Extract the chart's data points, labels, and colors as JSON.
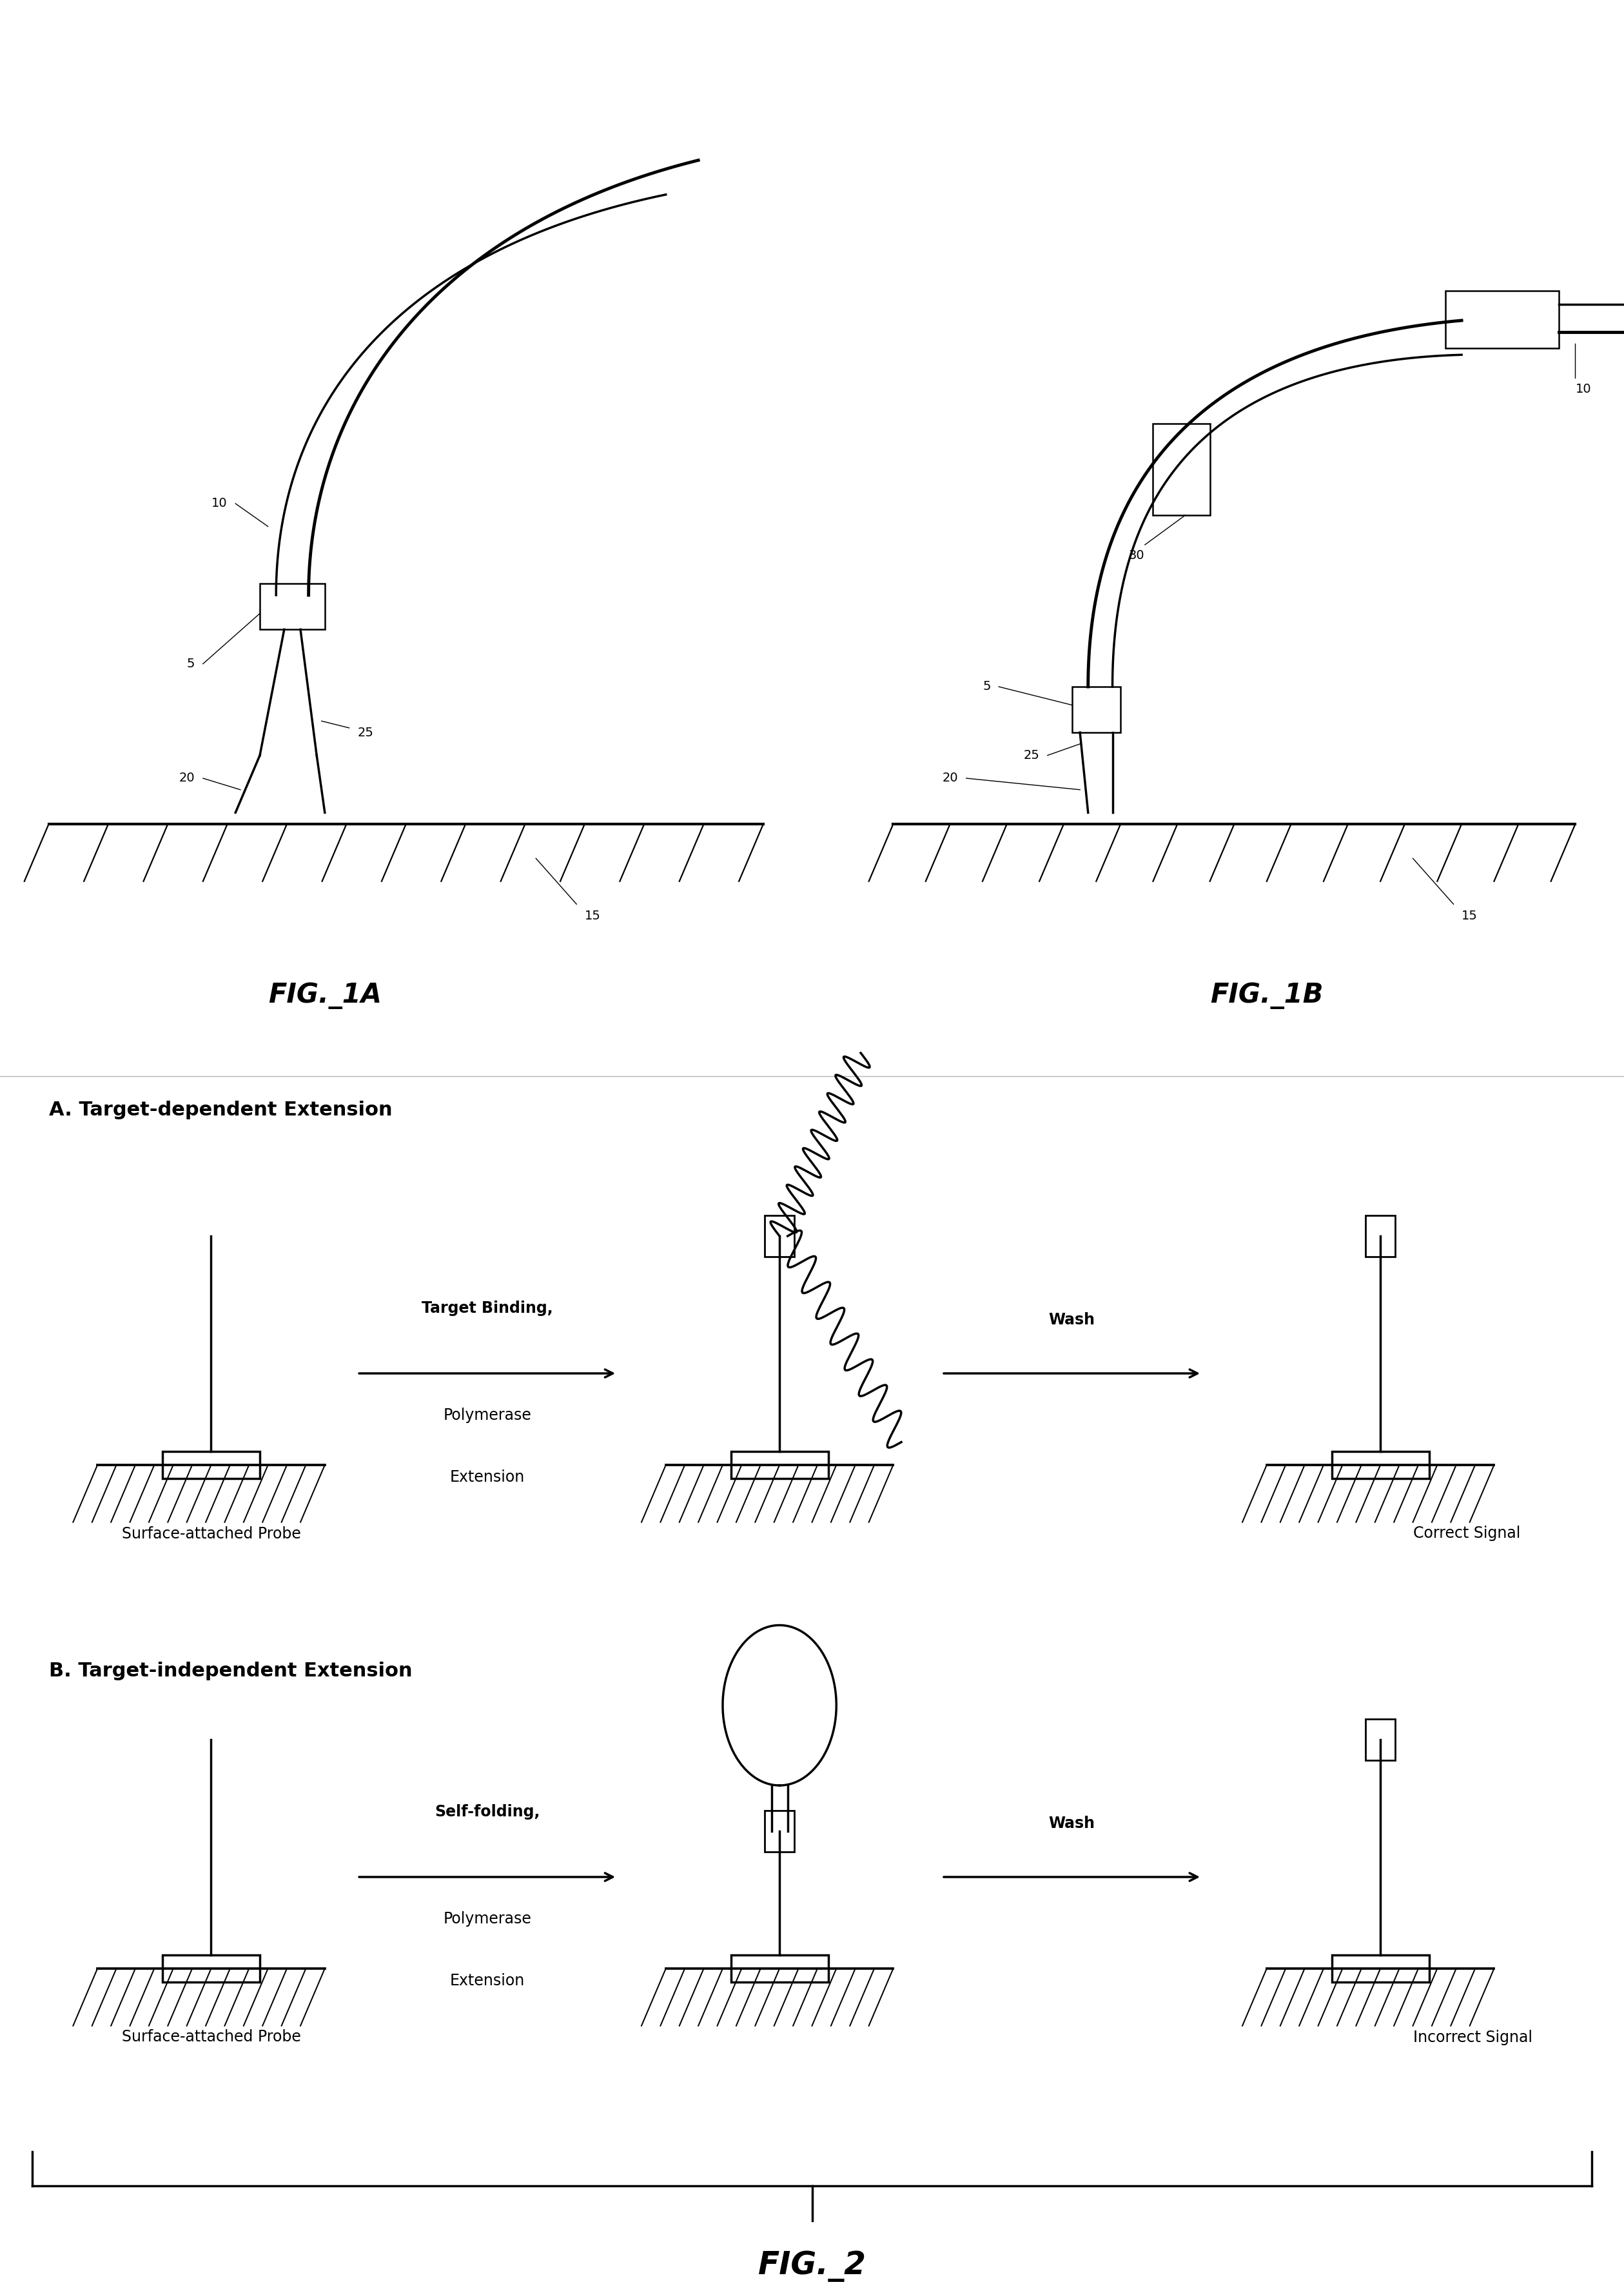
{
  "bg_color": "#ffffff",
  "line_color": "#000000",
  "fig_width": 25.19,
  "fig_height": 35.5,
  "title_fontsize": 28,
  "label_fontsize": 20,
  "annot_fontsize": 18,
  "fig1_title": "FIG._1A",
  "fig2_title": "FIG._1B",
  "fig3_title": "FIG._2",
  "section_A_title": "A. Target-dependent Extension",
  "section_B_title": "B. Target-independent Extension",
  "probe_label": "Surface-attached Probe",
  "correct_signal_label": "Correct Signal",
  "incorrect_signal_label": "Incorrect Signal",
  "arrow1_label_line1": "Target Binding,",
  "arrow1_label_line2": "Polymerase",
  "arrow1_label_line3": "Extension",
  "arrow2_label": "Wash",
  "arrow3_label_line1": "Self-folding,",
  "arrow3_label_line2": "Polymerase",
  "arrow3_label_line3": "Extension",
  "arrow4_label": "Wash"
}
